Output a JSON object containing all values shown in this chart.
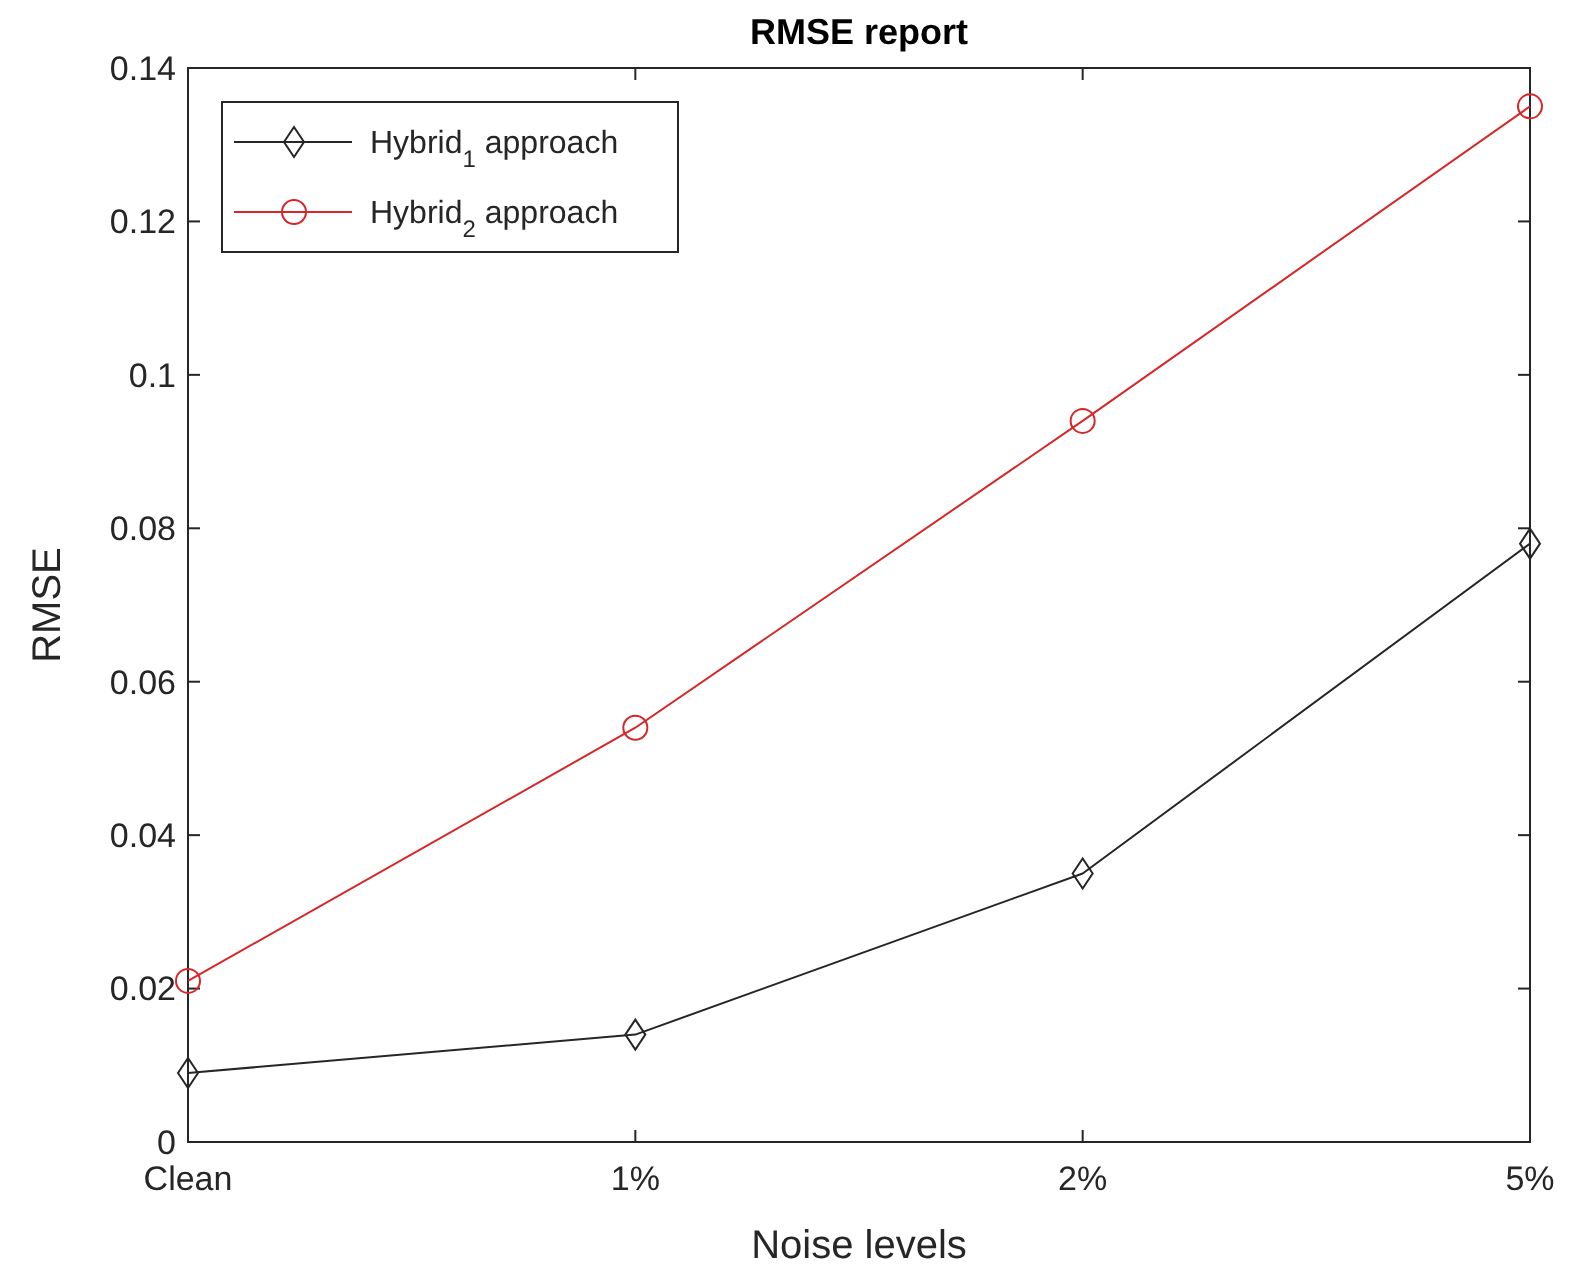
{
  "chart_data": {
    "type": "line",
    "title": "RMSE report",
    "xlabel": "Noise levels",
    "ylabel": "RMSE",
    "categories": [
      "Clean",
      "1%",
      "2%",
      "5%"
    ],
    "series": [
      {
        "name": "Hybrid$_{1}$ approach",
        "color": "#262626",
        "marker": "diamond",
        "values": [
          0.009,
          0.014,
          0.035,
          0.078
        ]
      },
      {
        "name": "Hybrid$_{2}$ approach",
        "color": "#d62728",
        "marker": "circle",
        "values": [
          0.021,
          0.054,
          0.094,
          0.135
        ]
      }
    ],
    "ylim": [
      0,
      0.14
    ],
    "yticks": [
      0,
      0.02,
      0.04,
      0.06,
      {
        "value": 0.08,
        "label": "0.08"
      },
      0.1,
      0.12,
      0.14
    ],
    "grid": false,
    "legend": "top left",
    "line_style": "solid"
  }
}
